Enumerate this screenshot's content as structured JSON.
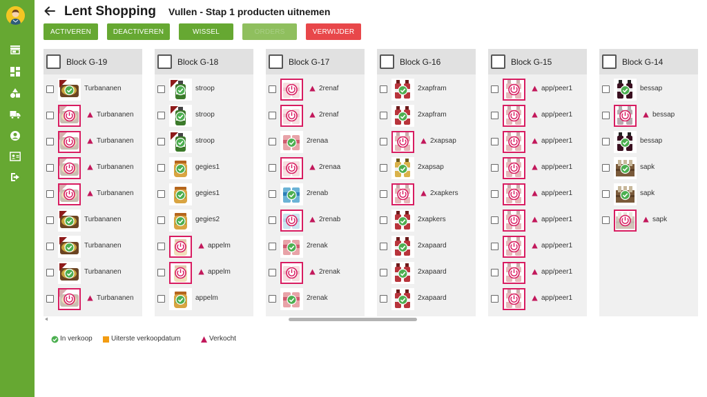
{
  "header": {
    "app_title": "Lent Shopping",
    "subtitle": "Vullen - Stap 1 producten uitnemen"
  },
  "sidebar": {
    "icons": [
      "avatar-icon",
      "store-icon",
      "dashboard-icon",
      "shapes-icon",
      "truck-icon",
      "account-circle-icon",
      "contact-card-icon",
      "logout-icon"
    ]
  },
  "toolbar": {
    "buttons": [
      {
        "label": "ACTIVEREN",
        "style": "green",
        "enabled": true
      },
      {
        "label": "DEACTIVEREN",
        "style": "green",
        "enabled": true
      },
      {
        "label": "WISSEL",
        "style": "green",
        "enabled": true
      },
      {
        "label": "ORDERS",
        "style": "green",
        "enabled": false
      },
      {
        "label": "VERWIJDER",
        "style": "red",
        "enabled": true
      }
    ]
  },
  "colors": {
    "accent_green": "#66a832",
    "danger_red": "#e8474a",
    "sold_marker": "#c2185b",
    "expiry_marker": "#f39c12",
    "in_sale_check": "#4caf50"
  },
  "blocks": [
    {
      "title": "Block G-19",
      "rows": [
        {
          "product": "Turbananen",
          "status": "in_sale",
          "sold": false,
          "kind": "tray"
        },
        {
          "product": "Turbananen",
          "status": "off",
          "sold": true,
          "kind": "tray"
        },
        {
          "product": "Turbananen",
          "status": "off",
          "sold": true,
          "kind": "tray"
        },
        {
          "product": "Turbananen",
          "status": "off",
          "sold": true,
          "kind": "tray"
        },
        {
          "product": "Turbananen",
          "status": "off",
          "sold": true,
          "kind": "tray"
        },
        {
          "product": "Turbananen",
          "status": "in_sale",
          "sold": false,
          "kind": "tray"
        },
        {
          "product": "Turbananen",
          "status": "in_sale",
          "sold": false,
          "kind": "tray"
        },
        {
          "product": "Turbananen",
          "status": "in_sale",
          "sold": false,
          "kind": "tray"
        },
        {
          "product": "Turbananen",
          "status": "off",
          "sold": true,
          "kind": "tray"
        }
      ]
    },
    {
      "title": "Block G-18",
      "rows": [
        {
          "product": "stroop",
          "status": "in_sale",
          "sold": false,
          "kind": "bottle"
        },
        {
          "product": "stroop",
          "status": "in_sale",
          "sold": false,
          "kind": "bottle"
        },
        {
          "product": "stroop",
          "status": "in_sale",
          "sold": false,
          "kind": "bottle"
        },
        {
          "product": "gegies1",
          "status": "in_sale",
          "sold": false,
          "kind": "jar"
        },
        {
          "product": "gegies1",
          "status": "in_sale",
          "sold": false,
          "kind": "jar"
        },
        {
          "product": "gegies2",
          "status": "in_sale",
          "sold": false,
          "kind": "jar"
        },
        {
          "product": "appelm",
          "status": "off",
          "sold": true,
          "kind": "jar"
        },
        {
          "product": "appelm",
          "status": "off",
          "sold": true,
          "kind": "jar"
        },
        {
          "product": "appelm",
          "status": "in_sale",
          "sold": false,
          "kind": "jar"
        }
      ]
    },
    {
      "title": "Block G-17",
      "rows": [
        {
          "product": "2renaf",
          "status": "off",
          "sold": true,
          "kind": "can"
        },
        {
          "product": "2renaf",
          "status": "off",
          "sold": true,
          "kind": "can"
        },
        {
          "product": "2renaa",
          "status": "in_sale",
          "sold": false,
          "kind": "can"
        },
        {
          "product": "2renaa",
          "status": "off",
          "sold": true,
          "kind": "can"
        },
        {
          "product": "2renab",
          "status": "in_sale",
          "sold": false,
          "kind": "can-blue"
        },
        {
          "product": "2renab",
          "status": "off",
          "sold": true,
          "kind": "can-blue"
        },
        {
          "product": "2renak",
          "status": "in_sale",
          "sold": false,
          "kind": "can"
        },
        {
          "product": "2renak",
          "status": "off",
          "sold": true,
          "kind": "can"
        },
        {
          "product": "2renak",
          "status": "in_sale",
          "sold": false,
          "kind": "can"
        }
      ]
    },
    {
      "title": "Block G-16",
      "rows": [
        {
          "product": "2xapfram",
          "status": "in_sale",
          "sold": false,
          "kind": "bottle-red"
        },
        {
          "product": "2xapfram",
          "status": "in_sale",
          "sold": false,
          "kind": "bottle-red"
        },
        {
          "product": "2xapsap",
          "status": "off",
          "sold": true,
          "kind": "bottle-red"
        },
        {
          "product": "2xapsap",
          "status": "in_sale",
          "sold": false,
          "kind": "bottle-yellow"
        },
        {
          "product": "2xapkers",
          "status": "off",
          "sold": true,
          "kind": "bottle-red"
        },
        {
          "product": "2xapkers",
          "status": "in_sale",
          "sold": false,
          "kind": "bottle-red"
        },
        {
          "product": "2xapaard",
          "status": "in_sale",
          "sold": false,
          "kind": "bottle-red"
        },
        {
          "product": "2xapaard",
          "status": "in_sale",
          "sold": false,
          "kind": "bottle-red"
        },
        {
          "product": "2xapaard",
          "status": "in_sale",
          "sold": false,
          "kind": "bottle-red"
        }
      ]
    },
    {
      "title": "Block G-15",
      "rows": [
        {
          "product": "app/peer1",
          "status": "off",
          "sold": true,
          "kind": "bottle-red"
        },
        {
          "product": "app/peer1",
          "status": "off",
          "sold": true,
          "kind": "bottle-red"
        },
        {
          "product": "app/peer1",
          "status": "off",
          "sold": true,
          "kind": "bottle-red"
        },
        {
          "product": "app/peer1",
          "status": "off",
          "sold": true,
          "kind": "bottle-red"
        },
        {
          "product": "app/peer1",
          "status": "off",
          "sold": true,
          "kind": "bottle-red"
        },
        {
          "product": "app/peer1",
          "status": "off",
          "sold": true,
          "kind": "bottle-red"
        },
        {
          "product": "app/peer1",
          "status": "off",
          "sold": true,
          "kind": "bottle-red"
        },
        {
          "product": "app/peer1",
          "status": "off",
          "sold": true,
          "kind": "bottle-red"
        },
        {
          "product": "app/peer1",
          "status": "off",
          "sold": true,
          "kind": "bottle-red"
        }
      ]
    },
    {
      "title": "Block G-14",
      "rows": [
        {
          "product": "bessap",
          "status": "in_sale",
          "sold": false,
          "kind": "bottle-dark"
        },
        {
          "product": "bessap",
          "status": "off",
          "sold": true,
          "kind": "bottle-dark"
        },
        {
          "product": "bessap",
          "status": "in_sale",
          "sold": false,
          "kind": "bottle-dark"
        },
        {
          "product": "sapk",
          "status": "in_sale",
          "sold": false,
          "kind": "crate"
        },
        {
          "product": "sapk",
          "status": "in_sale",
          "sold": false,
          "kind": "crate"
        },
        {
          "product": "sapk",
          "status": "off",
          "sold": true,
          "kind": "crate"
        }
      ]
    }
  ],
  "legend": [
    {
      "label": "In verkoop",
      "icon": "check-circle-icon"
    },
    {
      "label": "Uiterste verkoopdatum",
      "icon": "orange-square-icon"
    },
    {
      "label": "Verkocht",
      "icon": "sold-triangle-icon"
    }
  ]
}
